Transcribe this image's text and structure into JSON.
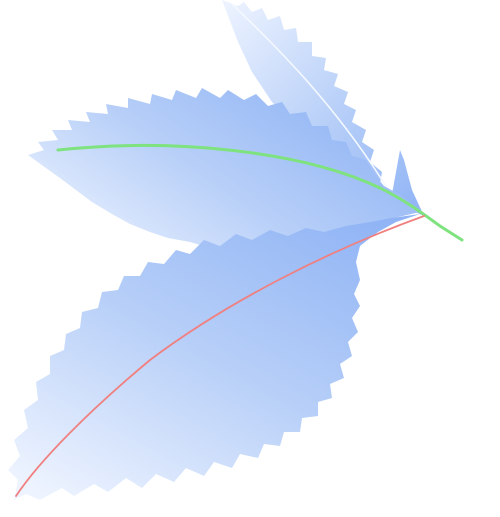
{
  "illustration": {
    "subject": "three-leaf-sprig-icon",
    "palette": {
      "leaf_dark": "#8fb3f5",
      "leaf_mid": "#b7cff8",
      "leaf_light": "#eef4ff",
      "stem_green": "#7ee37e",
      "midrib_red": "#f08080",
      "vein_light": "#f4f8ff"
    }
  }
}
